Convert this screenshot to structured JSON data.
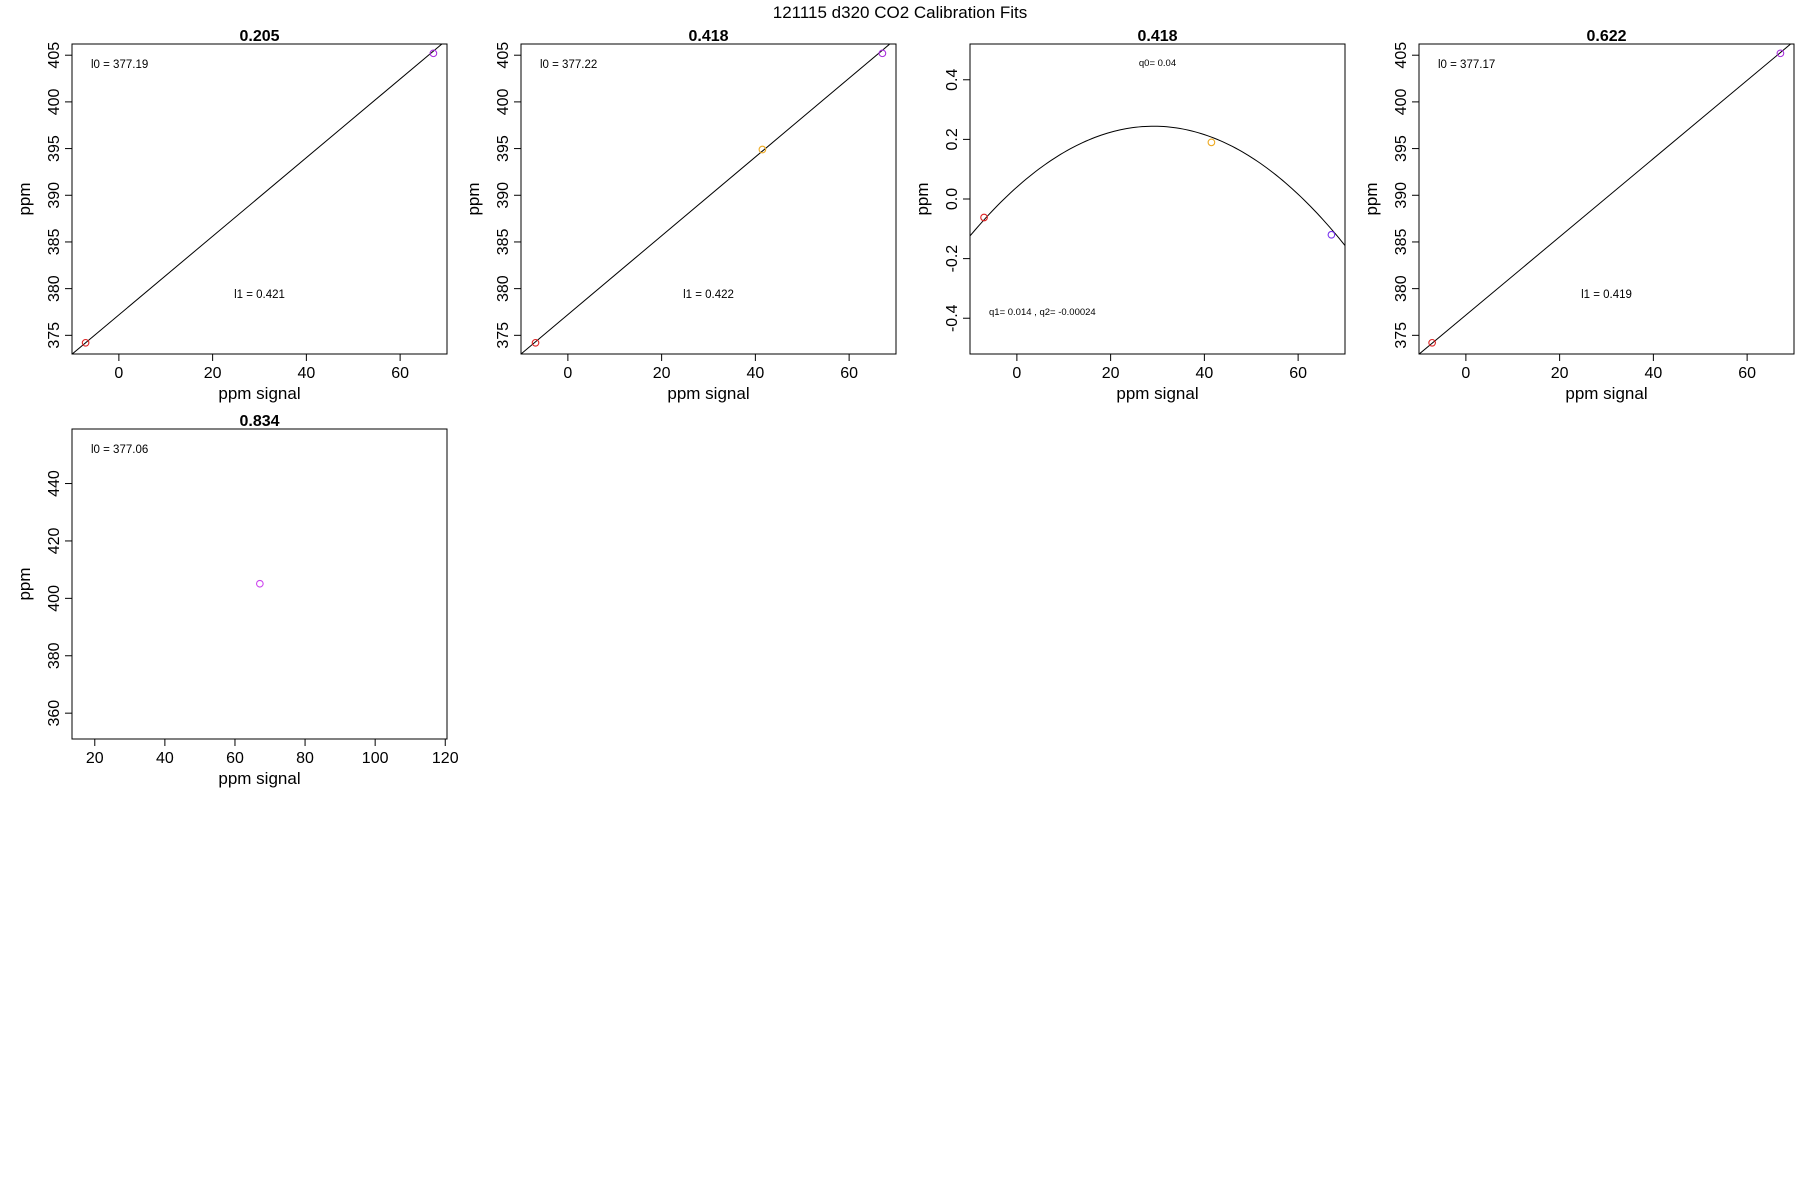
{
  "figure": {
    "title": "121115   d320   CO2 Calibration Fits"
  },
  "chart_data": [
    {
      "type": "scatter",
      "title": "0.205",
      "xlabel": "ppm signal",
      "ylabel": "ppm",
      "xlim": [
        -10,
        70
      ],
      "ylim": [
        373,
        406.2
      ],
      "xticks": [
        0,
        20,
        40,
        60
      ],
      "yticks": [
        375,
        380,
        385,
        390,
        395,
        400,
        405
      ],
      "fit": {
        "kind": "linear",
        "l0": 377.19,
        "l1": 0.421
      },
      "annotations": [
        {
          "text": "l0 =  377.19",
          "pos": "top-left"
        },
        {
          "text": "l1 =  0.421",
          "pos": "lower-middle"
        }
      ],
      "points": [
        {
          "x": -7.1,
          "y": 374.2,
          "color": "#dd2222"
        },
        {
          "x": 67.1,
          "y": 405.2,
          "color": "#aa33dd"
        }
      ]
    },
    {
      "type": "scatter",
      "title": "0.418",
      "xlabel": "ppm signal",
      "ylabel": "ppm",
      "xlim": [
        -10,
        70
      ],
      "ylim": [
        373,
        406.2
      ],
      "xticks": [
        0,
        20,
        40,
        60
      ],
      "yticks": [
        375,
        380,
        385,
        390,
        395,
        400,
        405
      ],
      "fit": {
        "kind": "linear",
        "l0": 377.22,
        "l1": 0.422
      },
      "annotations": [
        {
          "text": "l0 =  377.22",
          "pos": "top-left"
        },
        {
          "text": "l1 =  0.422",
          "pos": "lower-middle"
        }
      ],
      "points": [
        {
          "x": -6.9,
          "y": 374.2,
          "color": "#dd2222"
        },
        {
          "x": 41.5,
          "y": 394.9,
          "color": "#eeaa22"
        },
        {
          "x": 67.1,
          "y": 405.2,
          "color": "#aa33dd"
        }
      ]
    },
    {
      "type": "scatter",
      "title": "0.418",
      "xlabel": "ppm signal",
      "ylabel": "ppm",
      "xlim": [
        -10,
        70
      ],
      "ylim": [
        -0.52,
        0.52
      ],
      "xticks": [
        0,
        20,
        40,
        60
      ],
      "yticks": [
        -0.4,
        -0.2,
        0.0,
        0.2,
        0.4
      ],
      "ytick_labels": [
        "-0.4",
        "-0.2",
        "0.0",
        "0.2",
        "0.4"
      ],
      "fit": {
        "kind": "quadratic",
        "q0": 0.04,
        "q1": 0.014,
        "q2": -0.00024
      },
      "annotations": [
        {
          "text": "q0= 0.04",
          "pos": "top-center"
        },
        {
          "text": "q1= 0.014 , q2= -0.00024",
          "pos": "bottom-left"
        }
      ],
      "points": [
        {
          "x": -7.0,
          "y": -0.062,
          "color": "#dd2222"
        },
        {
          "x": 41.5,
          "y": 0.19,
          "color": "#eeaa22"
        },
        {
          "x": 67.1,
          "y": -0.12,
          "color": "#7733ee"
        }
      ]
    },
    {
      "type": "scatter",
      "title": "0.622",
      "xlabel": "ppm signal",
      "ylabel": "ppm",
      "xlim": [
        -10,
        70
      ],
      "ylim": [
        373,
        406.2
      ],
      "xticks": [
        0,
        20,
        40,
        60
      ],
      "yticks": [
        375,
        380,
        385,
        390,
        395,
        400,
        405
      ],
      "fit": {
        "kind": "linear",
        "l0": 377.17,
        "l1": 0.419
      },
      "annotations": [
        {
          "text": "l0 =  377.17",
          "pos": "top-left"
        },
        {
          "text": "l1 =  0.419",
          "pos": "lower-middle"
        }
      ],
      "points": [
        {
          "x": -7.2,
          "y": 374.2,
          "color": "#dd2222"
        },
        {
          "x": 67.1,
          "y": 405.2,
          "color": "#aa33dd"
        }
      ]
    },
    {
      "type": "scatter",
      "title": "0.834",
      "xlabel": "ppm signal",
      "ylabel": "ppm",
      "xlim": [
        13.5,
        120.5
      ],
      "ylim": [
        351,
        459
      ],
      "xticks": [
        20,
        40,
        60,
        80,
        100,
        120
      ],
      "yticks": [
        360,
        380,
        400,
        420,
        440
      ],
      "fit": {
        "kind": "none"
      },
      "annotations": [
        {
          "text": "l0 =  377.06",
          "pos": "top-left"
        }
      ],
      "points": [
        {
          "x": 67.1,
          "y": 405.1,
          "color": "#cc44ee"
        }
      ]
    }
  ]
}
